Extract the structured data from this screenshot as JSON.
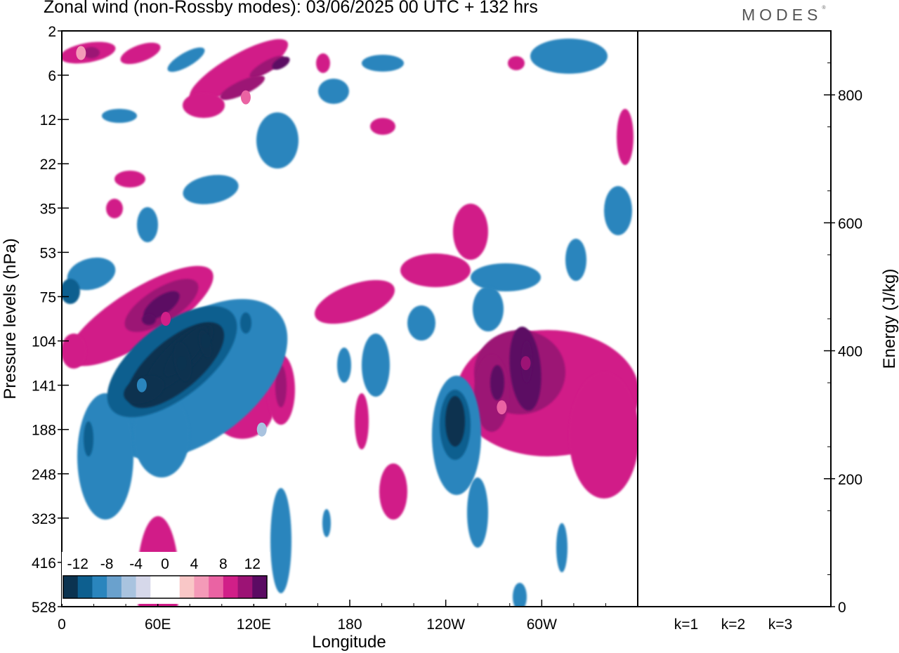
{
  "header": {
    "title": "Zonal wind (non-Rossby modes):  03/06/2025  00 UTC  + 132 hrs",
    "logo": "MODES"
  },
  "colors": {
    "scale": [
      "#0b3350",
      "#0d5f8f",
      "#2a85bd",
      "#6aa1cd",
      "#a9c3df",
      "#d6d8ea",
      "#ffffff",
      "#ffffff",
      "#f9c7c7",
      "#f49ab8",
      "#ea63a3",
      "#d11f88",
      "#9c1375",
      "#5b0b63"
    ]
  },
  "chart_data": [
    {
      "type": "heatmap",
      "title": "Zonal wind (non-Rossby modes):  03/06/2025  00 UTC  + 132 hrs",
      "xlabel": "Longitude",
      "ylabel": "Pressure levels (hPa)",
      "x_ticks": [
        "0",
        "60E",
        "120E",
        "180",
        "120W",
        "60W"
      ],
      "y_ticks": [
        "2",
        "6",
        "12",
        "22",
        "35",
        "53",
        "75",
        "104",
        "141",
        "188",
        "248",
        "323",
        "416",
        "528"
      ],
      "colorbar": {
        "labels": [
          "-12",
          "-8",
          "-4",
          "0",
          "4",
          "8",
          "12"
        ],
        "levels": [
          -14,
          -12,
          -10,
          -8,
          -6,
          -4,
          -2,
          0,
          2,
          4,
          6,
          8,
          10,
          12,
          14
        ]
      },
      "features": [
        {
          "lon": 75,
          "level": "104-141",
          "value": -14
        },
        {
          "lon": 90,
          "level": "104",
          "value": -14
        },
        {
          "lon": 50,
          "level": "141",
          "value": -10
        },
        {
          "lon": 65,
          "level": "75-104",
          "value": 8
        },
        {
          "lon": 125,
          "level": "188",
          "value": -6
        },
        {
          "lon": 290,
          "level": "104-141",
          "value": 10
        },
        {
          "lon": 275,
          "level": "141-188",
          "value": 6
        },
        {
          "lon": 115,
          "level": "6-12",
          "value": 6
        },
        {
          "lon": 12,
          "level": "2-6",
          "value": 4
        }
      ]
    },
    {
      "type": "bar",
      "ylabel": "Energy (J/kg)",
      "categories": [
        "k=1",
        "k=2",
        "k=3"
      ],
      "values": [
        1,
        1,
        1
      ],
      "ylim": [
        0,
        900
      ],
      "y_ticks": [
        "0",
        "200",
        "400",
        "600",
        "800"
      ]
    }
  ]
}
